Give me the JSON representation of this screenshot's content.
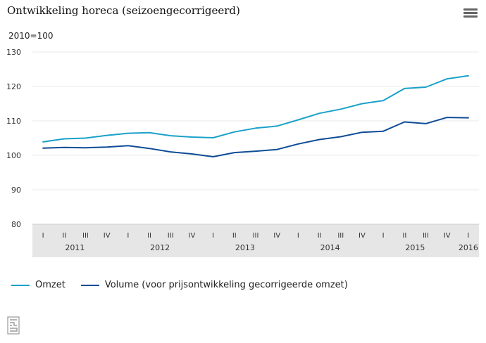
{
  "header": {
    "title": "Ontwikkeling horeca (seizoengecorrigeerd)",
    "menu_icon": "hamburger-menu-icon"
  },
  "chart_data": {
    "type": "line",
    "unit_label": "2010=100",
    "ylim": [
      80,
      130
    ],
    "yticks": [
      80,
      90,
      100,
      110,
      120,
      130
    ],
    "grid": true,
    "legend_position": "bottom-left",
    "quarters": [
      "I",
      "II",
      "III",
      "IV",
      "I",
      "II",
      "III",
      "IV",
      "I",
      "II",
      "III",
      "IV",
      "I",
      "II",
      "III",
      "IV",
      "I",
      "II",
      "III",
      "IV",
      "I"
    ],
    "years": [
      {
        "label": "2011",
        "start": 0,
        "end": 3
      },
      {
        "label": "2012",
        "start": 4,
        "end": 7
      },
      {
        "label": "2013",
        "start": 8,
        "end": 11
      },
      {
        "label": "2014",
        "start": 12,
        "end": 15
      },
      {
        "label": "2015",
        "start": 16,
        "end": 19
      },
      {
        "label": "2016",
        "start": 20,
        "end": 20
      }
    ],
    "series": [
      {
        "name": "Omzet",
        "color": "#1aa1c9",
        "values": [
          103.9,
          104.8,
          105.0,
          105.8,
          106.4,
          106.6,
          105.7,
          105.3,
          105.1,
          106.8,
          107.9,
          108.5,
          110.3,
          112.2,
          113.4,
          115.0,
          115.9,
          119.4,
          119.8,
          122.2,
          123.1
        ]
      },
      {
        "name": "Volume (voor prijsontwikkeling gecorrigeerde omzet)",
        "color": "#0e4c96",
        "values": [
          102.1,
          102.3,
          102.2,
          102.4,
          102.8,
          102.0,
          101.0,
          100.4,
          99.6,
          100.8,
          101.2,
          101.7,
          103.3,
          104.6,
          105.4,
          106.7,
          107.0,
          109.7,
          109.2,
          111.0,
          110.9
        ]
      }
    ]
  },
  "footer": {
    "logo_icon": "cbs-logo-icon"
  }
}
